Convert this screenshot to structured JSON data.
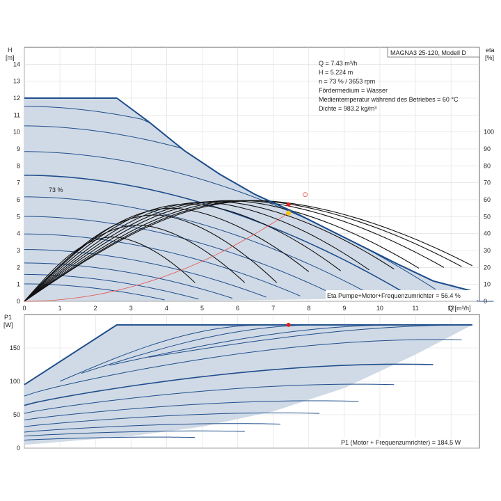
{
  "chart_data": [
    {
      "type": "line",
      "title": "MAGNA3 25-120, Modell D",
      "ylabel_left": "H",
      "ylabel_left_unit": "[m]",
      "ylabel_right": "eta",
      "ylabel_right_unit": "[%]",
      "xlabel": "Q [m³/h]",
      "xlim": [
        0,
        12.8
      ],
      "ylim": [
        0,
        15
      ],
      "ylim_right": [
        0,
        150
      ],
      "x_ticks": [
        0,
        1,
        2,
        3,
        4,
        5,
        6,
        7,
        8,
        9,
        10,
        11,
        12
      ],
      "y_ticks": [
        0,
        1,
        2,
        3,
        4,
        5,
        6,
        7,
        8,
        9,
        10,
        11,
        12,
        13,
        14
      ],
      "y_right_ticks": [
        0,
        10,
        20,
        30,
        40,
        50,
        60,
        70,
        80,
        90,
        100
      ],
      "grid": true,
      "info_lines": [
        "Q = 7.43 m³/h",
        "H = 5.224 m",
        "n = 73 % / 3653 rpm",
        "Fördermedium = Wasser",
        "Medientemperatur während des Betriebes = 60 °C",
        "Dichte = 983.2 kg/m³"
      ],
      "curve_label": "73 %",
      "footer_note": "Eta Pumpe+Motor+Frequenzumrichter = 56.4 %",
      "max_curve": {
        "x": [
          0,
          2.6,
          3.5,
          4.5,
          5.5,
          6.5,
          7.5,
          8.5,
          9.5,
          10.5,
          11.5,
          12.6
        ],
        "y": [
          12,
          12,
          10.6,
          8.9,
          7.5,
          6.3,
          5.35,
          4.3,
          3.25,
          2.2,
          1.2,
          0.6
        ]
      },
      "operating_point": {
        "q": 7.43,
        "h": 5.224
      },
      "duty_point_outline": {
        "q": 7.9,
        "h": 5.7
      },
      "operating_point_eta": {
        "q": 7.43,
        "eta": 56.4
      },
      "colors": {
        "envelope_fill": "#d0dae6",
        "envelope_edge": "#1f4e8c",
        "speed_curves": "#1f4e8c",
        "eta_curves": "#111111",
        "system_curve": "#e8504a",
        "operating_point": "#e02020",
        "eta_point": "#f5c518"
      }
    },
    {
      "type": "line",
      "ylabel_left": "P1",
      "ylabel_left_unit": "[W]",
      "xlim": [
        0,
        12.8
      ],
      "ylim": [
        0,
        200
      ],
      "y_ticks": [
        0,
        50,
        100,
        150
      ],
      "grid": true,
      "footer_note": "P1 (Motor + Frequenzumrichter) = 184.5 W",
      "max_power": 184.5,
      "operating_point": {
        "q": 7.43,
        "p": 184.5
      },
      "colors": {
        "envelope_fill": "#d0dae6",
        "envelope_edge": "#1f4e8c",
        "operating_point": "#e02020"
      }
    }
  ]
}
